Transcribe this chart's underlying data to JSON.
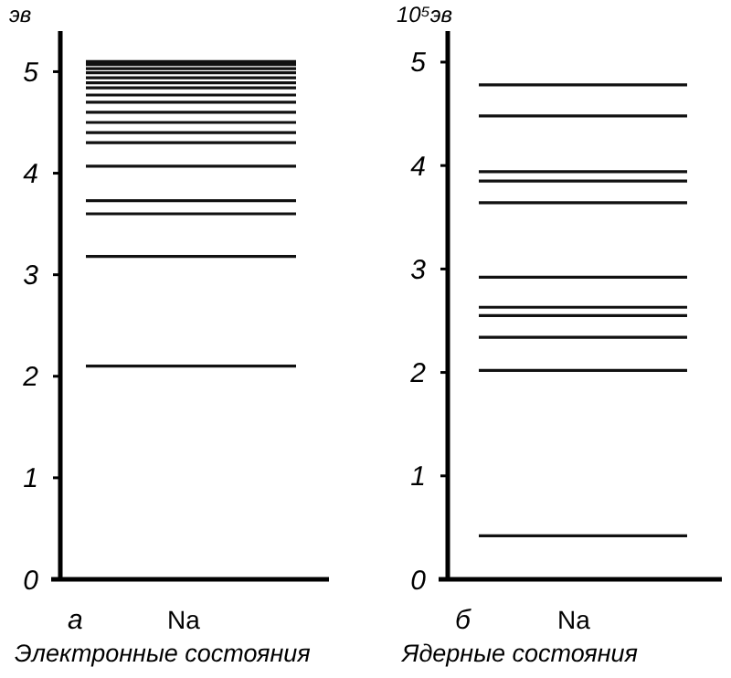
{
  "chart_data": [
    {
      "type": "line",
      "ylabel": "эв",
      "xlabel": "Na",
      "categories": [
        null
      ],
      "annotations": [
        "а",
        "Электронные состояния"
      ],
      "ylim": [
        0,
        5.4
      ],
      "yticks": [
        0,
        1,
        2,
        3,
        4,
        5
      ],
      "ref_lines": [
        {
          "axis": "y",
          "value": 2.1
        },
        {
          "axis": "y",
          "value": 3.18
        },
        {
          "axis": "y",
          "value": 3.6
        },
        {
          "axis": "y",
          "value": 3.73
        },
        {
          "axis": "y",
          "value": 4.07
        },
        {
          "axis": "y",
          "value": 4.3
        },
        {
          "axis": "y",
          "value": 4.4
        },
        {
          "axis": "y",
          "value": 4.5
        },
        {
          "axis": "y",
          "value": 4.6
        },
        {
          "axis": "y",
          "value": 4.7
        },
        {
          "axis": "y",
          "value": 4.77
        },
        {
          "axis": "y",
          "value": 4.84
        },
        {
          "axis": "y",
          "value": 4.89
        },
        {
          "axis": "y",
          "value": 4.94
        },
        {
          "axis": "y",
          "value": 4.99
        },
        {
          "axis": "y",
          "value": 5.03
        },
        {
          "axis": "y",
          "value": 5.07
        },
        {
          "axis": "y",
          "value": 5.1
        }
      ]
    },
    {
      "type": "line",
      "ylabel": "10⁵эв",
      "xlabel": "Na",
      "categories": [
        null
      ],
      "annotations": [
        "б",
        "Ядерные состояния"
      ],
      "ylim": [
        0,
        5.3
      ],
      "yticks": [
        0,
        1,
        2,
        3,
        4,
        5
      ],
      "ref_lines": [
        {
          "axis": "y",
          "value": 0.42
        },
        {
          "axis": "y",
          "value": 2.02
        },
        {
          "axis": "y",
          "value": 2.34
        },
        {
          "axis": "y",
          "value": 2.55
        },
        {
          "axis": "y",
          "value": 2.63
        },
        {
          "axis": "y",
          "value": 2.92
        },
        {
          "axis": "y",
          "value": 3.64
        },
        {
          "axis": "y",
          "value": 3.85
        },
        {
          "axis": "y",
          "value": 3.94
        },
        {
          "axis": "y",
          "value": 4.48
        },
        {
          "axis": "y",
          "value": 4.78
        }
      ]
    }
  ]
}
